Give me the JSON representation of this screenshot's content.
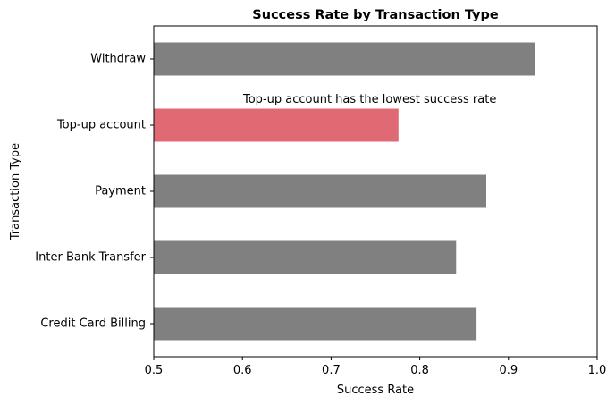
{
  "chart_data": {
    "type": "bar",
    "orientation": "horizontal",
    "title": "Success Rate by Transaction Type",
    "xlabel": "Success Rate",
    "ylabel": "Transaction Type",
    "xlim": [
      0.5,
      1.0
    ],
    "xticks": [
      "0.5",
      "0.6",
      "0.7",
      "0.8",
      "0.9",
      "1.0"
    ],
    "categories": [
      "Credit Card Billing",
      "Inter Bank Transfer",
      "Payment",
      "Top-up account",
      "Withdraw"
    ],
    "values": [
      0.864,
      0.841,
      0.875,
      0.776,
      0.93
    ],
    "highlight": "Top-up account",
    "annotation": "Top-up account has the lowest success rate",
    "grid": false,
    "colors": {
      "bar": "#808080",
      "highlight": "#e06a73",
      "axis": "#000000"
    }
  }
}
